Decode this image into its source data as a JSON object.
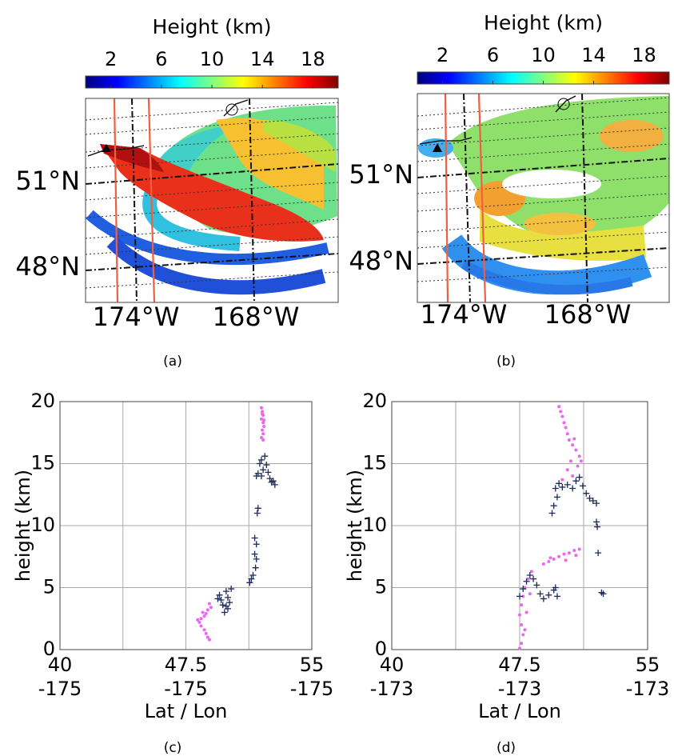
{
  "chart_data": [
    {
      "type": "map",
      "caption": "(a)",
      "colorbar": {
        "title": "Height (km)",
        "lim": [
          0,
          20
        ],
        "ticks": [
          2,
          6,
          10,
          14,
          18
        ],
        "colormap": [
          "#00007f",
          "#0000ff",
          "#0080ff",
          "#00ffff",
          "#80ff80",
          "#ffff00",
          "#ff8000",
          "#ff0000",
          "#7f0000"
        ]
      },
      "lat_labels": [
        "51°N",
        "48°N"
      ],
      "lon_labels": [
        "174°W",
        "168°W"
      ]
    },
    {
      "type": "map",
      "caption": "(b)",
      "colorbar": {
        "title": "Height (km)",
        "lim": [
          0,
          20
        ],
        "ticks": [
          2,
          6,
          10,
          14,
          18
        ],
        "colormap": [
          "#00007f",
          "#0000ff",
          "#0080ff",
          "#00ffff",
          "#80ff80",
          "#ffff00",
          "#ff8000",
          "#ff0000",
          "#7f0000"
        ]
      },
      "lat_labels": [
        "51°N",
        "48°N"
      ],
      "lon_labels": [
        "174°W",
        "168°W"
      ]
    },
    {
      "type": "scatter",
      "caption": "(c)",
      "xlabel": "Lat / Lon",
      "ylabel": "height (km)",
      "xlim": [
        40,
        55
      ],
      "ylim": [
        0,
        20
      ],
      "xticks": [
        40,
        47.5,
        55
      ],
      "xticks_lon": [
        "-175",
        "-175",
        "-175"
      ],
      "xminorticks": [
        43.75,
        51.25
      ],
      "yticks": [
        0,
        5,
        10,
        15,
        20
      ],
      "grid": true,
      "series": [
        {
          "color": "#ee66ee",
          "marker": "dot",
          "x": [
            52.0,
            52.05,
            52.1,
            52.0,
            52.1,
            52.15,
            52.05,
            52.1,
            52.0,
            52.1,
            52.05,
            52.15,
            48.9,
            49.0,
            48.8,
            48.7,
            48.6,
            48.4,
            48.3,
            48.4,
            48.6,
            48.7,
            48.8,
            48.9,
            48.2,
            48.5
          ],
          "values": [
            19.5,
            19.2,
            18.9,
            18.6,
            18.3,
            18.0,
            17.7,
            17.4,
            17.1,
            16.9,
            19.0,
            18.5,
            3.7,
            3.4,
            3.2,
            2.9,
            2.7,
            2.5,
            2.2,
            1.9,
            1.6,
            1.3,
            1.0,
            0.8,
            2.4,
            3.0
          ]
        },
        {
          "color": "#1c2a5a",
          "marker": "plus",
          "x": [
            51.9,
            52.0,
            52.2,
            52.3,
            52.1,
            51.8,
            52.0,
            52.4,
            52.5,
            52.6,
            52.8,
            52.7,
            51.7,
            51.8,
            51.75,
            51.6,
            51.7,
            51.6,
            51.7,
            51.65,
            51.5,
            51.4,
            51.3,
            49.5,
            49.6,
            49.7,
            49.9,
            50.0,
            50.1,
            50.0,
            49.8,
            50.2,
            49.4,
            49.9
          ],
          "values": [
            15.0,
            15.3,
            15.6,
            14.9,
            14.5,
            14.2,
            14.0,
            14.3,
            13.8,
            13.5,
            13.3,
            13.6,
            14.0,
            11.4,
            11.0,
            9.0,
            8.5,
            7.7,
            7.3,
            6.6,
            6.0,
            5.7,
            5.4,
            4.4,
            4.0,
            3.6,
            4.7,
            4.2,
            3.8,
            3.3,
            3.0,
            4.9,
            4.1,
            3.5
          ]
        }
      ]
    },
    {
      "type": "scatter",
      "caption": "(d)",
      "xlabel": "Lat / Lon",
      "ylabel": "height (km)",
      "xlim": [
        40,
        55
      ],
      "ylim": [
        0,
        20
      ],
      "xticks": [
        40,
        47.5,
        55
      ],
      "xticks_lon": [
        "-173",
        "-173",
        "-173"
      ],
      "xminorticks": [
        43.75,
        51.25
      ],
      "yticks": [
        0,
        5,
        10,
        15,
        20
      ],
      "grid": true,
      "series": [
        {
          "color": "#ee66ee",
          "marker": "dot",
          "x": [
            49.8,
            49.9,
            50.0,
            50.1,
            50.2,
            50.3,
            50.4,
            50.6,
            50.8,
            51.0,
            50.5,
            50.9,
            50.3,
            50.6,
            50.0,
            51.1,
            50.7,
            48.9,
            49.2,
            49.5,
            49.8,
            50.1,
            50.4,
            50.7,
            51.0,
            49.3,
            50.2,
            50.8,
            48.2,
            48.0,
            47.8,
            47.7,
            47.6,
            47.5,
            47.6,
            47.7,
            47.6,
            47.5,
            47.9,
            48.1,
            47.8
          ],
          "values": [
            19.6,
            19.2,
            18.8,
            18.3,
            17.9,
            17.4,
            16.9,
            16.5,
            16.1,
            15.6,
            15.2,
            14.8,
            14.5,
            14.0,
            13.7,
            15.2,
            17.0,
            6.9,
            7.1,
            7.3,
            7.5,
            7.7,
            7.8,
            8.0,
            8.1,
            7.4,
            7.2,
            7.6,
            6.3,
            5.7,
            5.0,
            4.3,
            3.6,
            2.8,
            2.0,
            1.2,
            0.5,
            0.1,
            3.0,
            4.5,
            1.6
          ]
        },
        {
          "color": "#1c2a5a",
          "marker": "plus",
          "x": [
            49.6,
            49.8,
            50.0,
            50.3,
            50.6,
            50.8,
            51.0,
            51.2,
            51.4,
            51.6,
            51.8,
            52.0,
            49.7,
            49.5,
            49.4,
            52.0,
            52.05,
            52.1,
            47.5,
            47.7,
            47.9,
            48.1,
            48.3,
            48.5,
            48.7,
            48.9,
            49.2,
            49.5,
            49.7,
            49.6,
            52.3,
            52.4
          ],
          "values": [
            13.0,
            13.4,
            13.1,
            13.3,
            13.0,
            13.6,
            13.9,
            13.2,
            12.6,
            12.2,
            12.0,
            11.8,
            12.3,
            11.6,
            11.0,
            10.3,
            9.9,
            7.8,
            4.3,
            4.9,
            5.5,
            6.0,
            5.7,
            5.2,
            4.5,
            4.1,
            4.4,
            4.8,
            4.3,
            5.0,
            4.6,
            4.5
          ]
        }
      ]
    }
  ]
}
